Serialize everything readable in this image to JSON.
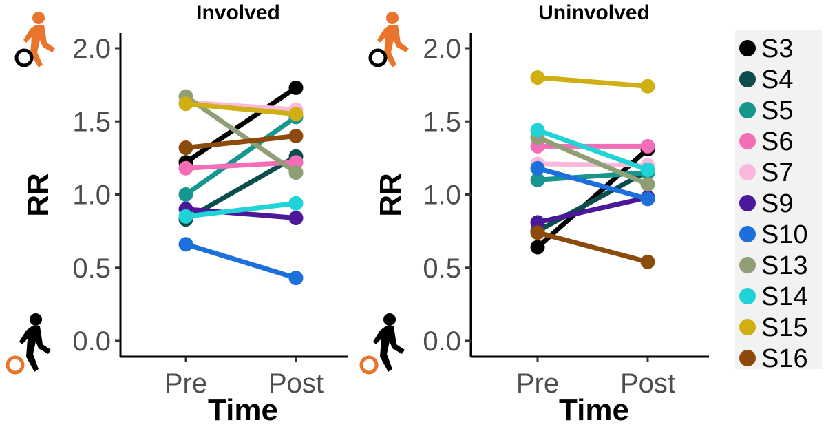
{
  "chart_data": [
    {
      "type": "line",
      "title": "Involved",
      "xlabel": "Time",
      "ylabel": "RR",
      "categories": [
        "Pre",
        "Post"
      ],
      "ylim": [
        -0.05,
        2.1
      ],
      "yticks": [
        "0.0",
        "0.5",
        "1.0",
        "1.5",
        "2.0"
      ],
      "series": [
        {
          "name": "S3",
          "values": [
            1.22,
            1.73
          ]
        },
        {
          "name": "S4",
          "values": [
            0.83,
            1.26
          ]
        },
        {
          "name": "S5",
          "values": [
            1.0,
            1.53
          ]
        },
        {
          "name": "S6",
          "values": [
            1.18,
            1.22
          ]
        },
        {
          "name": "S7",
          "values": [
            1.63,
            1.58
          ]
        },
        {
          "name": "S9",
          "values": [
            0.9,
            0.84
          ]
        },
        {
          "name": "S10",
          "values": [
            0.66,
            0.43
          ]
        },
        {
          "name": "S13",
          "values": [
            1.67,
            1.15
          ]
        },
        {
          "name": "S14",
          "values": [
            0.85,
            0.94
          ]
        },
        {
          "name": "S15",
          "values": [
            1.62,
            1.55
          ]
        },
        {
          "name": "S16",
          "values": [
            1.32,
            1.4
          ]
        }
      ]
    },
    {
      "type": "line",
      "title": "Uninvolved",
      "xlabel": "Time",
      "ylabel": "RR",
      "categories": [
        "Pre",
        "Post"
      ],
      "ylim": [
        -0.05,
        2.1
      ],
      "yticks": [
        "0.0",
        "0.5",
        "1.0",
        "1.5",
        "2.0"
      ],
      "series": [
        {
          "name": "S3",
          "values": [
            0.64,
            1.31
          ]
        },
        {
          "name": "S4",
          "values": [
            0.75,
            1.16
          ]
        },
        {
          "name": "S5",
          "values": [
            1.1,
            1.15
          ]
        },
        {
          "name": "S6",
          "values": [
            1.33,
            1.33
          ]
        },
        {
          "name": "S7",
          "values": [
            1.21,
            1.2
          ]
        },
        {
          "name": "S9",
          "values": [
            0.81,
            0.98
          ]
        },
        {
          "name": "S10",
          "values": [
            1.18,
            0.97
          ]
        },
        {
          "name": "S13",
          "values": [
            1.39,
            1.07
          ]
        },
        {
          "name": "S14",
          "values": [
            1.44,
            1.17
          ]
        },
        {
          "name": "S15",
          "values": [
            1.8,
            1.74
          ]
        },
        {
          "name": "S16",
          "values": [
            0.74,
            0.54
          ]
        }
      ]
    }
  ],
  "legend": {
    "placement": "right",
    "items": [
      {
        "label": "S3",
        "color": "#000000"
      },
      {
        "label": "S4",
        "color": "#0b4d4c"
      },
      {
        "label": "S5",
        "color": "#17968f"
      },
      {
        "label": "S6",
        "color": "#f36db7"
      },
      {
        "label": "S7",
        "color": "#f9b8dc"
      },
      {
        "label": "S9",
        "color": "#4b1899"
      },
      {
        "label": "S10",
        "color": "#1d6fdb"
      },
      {
        "label": "S13",
        "color": "#8f9e75"
      },
      {
        "label": "S14",
        "color": "#20d3d6"
      },
      {
        "label": "S15",
        "color": "#cfaf12"
      },
      {
        "label": "S16",
        "color": "#8c4a0b"
      }
    ]
  },
  "icons": {
    "top": "orange-walker-stepping-over-obstacle-icon",
    "bottom": "black-walker-stepping-over-obstacle-icon",
    "orange": "#e9742c",
    "black": "#000000"
  }
}
